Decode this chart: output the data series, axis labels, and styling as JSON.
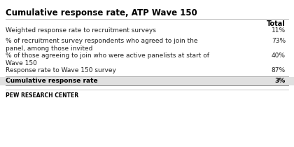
{
  "title": "Cumulative response rate, ATP Wave 150",
  "col_header": "Total",
  "rows": [
    {
      "label": "Weighted response rate to recruitment surveys",
      "value": "11%",
      "bold": false
    },
    {
      "label": "% of recruitment survey respondents who agreed to join the\npanel, among those invited",
      "value": "73%",
      "bold": false
    },
    {
      "label": "% of those agreeing to join who were active panelists at start of\nWave 150",
      "value": "40%",
      "bold": false
    },
    {
      "label": "Response rate to Wave 150 survey",
      "value": "87%",
      "bold": false
    },
    {
      "label": "Cumulative response rate",
      "value": "3%",
      "bold": true
    }
  ],
  "footer": "PEW RESEARCH CENTER",
  "bg_color": "#ffffff",
  "title_color": "#000000",
  "header_color": "#000000",
  "row_text_color": "#222222",
  "bold_row_bg": "#e0e0e0",
  "divider_color": "#b0b0b0",
  "footer_color": "#000000",
  "title_fontsize": 8.5,
  "header_fontsize": 7.0,
  "row_fontsize": 6.5,
  "footer_fontsize": 5.5
}
